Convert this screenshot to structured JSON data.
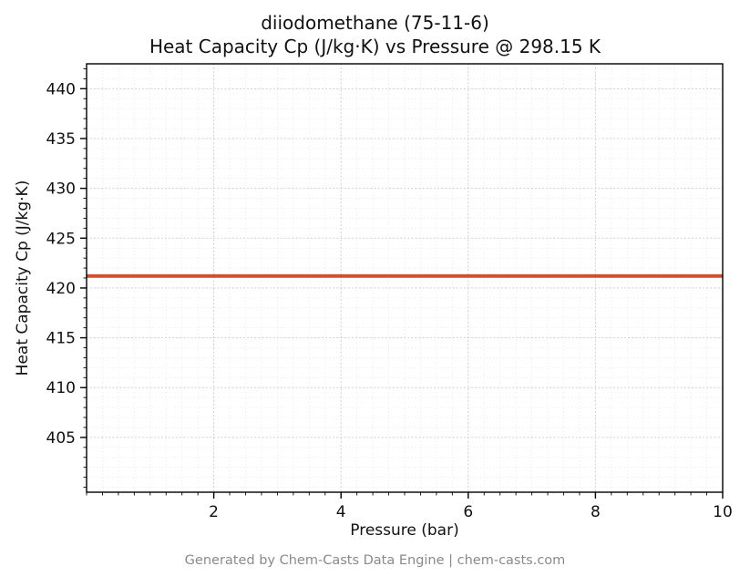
{
  "chart_data": {
    "type": "line",
    "title_lines": [
      "diiodomethane (75-11-6)",
      "Heat Capacity Cp (J/kg·K) vs Pressure @ 298.15 K"
    ],
    "xlabel": "Pressure (bar)",
    "ylabel": "Heat Capacity Cp (J/kg·K)",
    "series": [
      {
        "name": "Heat Capacity Cp",
        "x": [
          0,
          10
        ],
        "y": [
          421.2,
          421.2
        ],
        "color": "#d0512b",
        "linewidth": 3.8
      }
    ],
    "constant_value": 421.2,
    "xlim": [
      0,
      10
    ],
    "ylim": [
      399.5,
      442.5
    ],
    "xticks": [
      2,
      4,
      6,
      8,
      10
    ],
    "yticks": [
      405,
      410,
      415,
      420,
      425,
      430,
      435,
      440
    ],
    "minor_x_step": 0.25,
    "minor_y_step": 1,
    "grid": true,
    "grid_style": "dotted",
    "legend": "none"
  },
  "footer": {
    "text": "Generated by Chem-Casts Data Engine | chem-casts.com"
  },
  "colors": {
    "line": "#d0512b",
    "major_grid": "#c8c8c8",
    "minor_grid": "#e3e3e3",
    "spine": "#000000",
    "footer_text": "#8a8a8a"
  }
}
